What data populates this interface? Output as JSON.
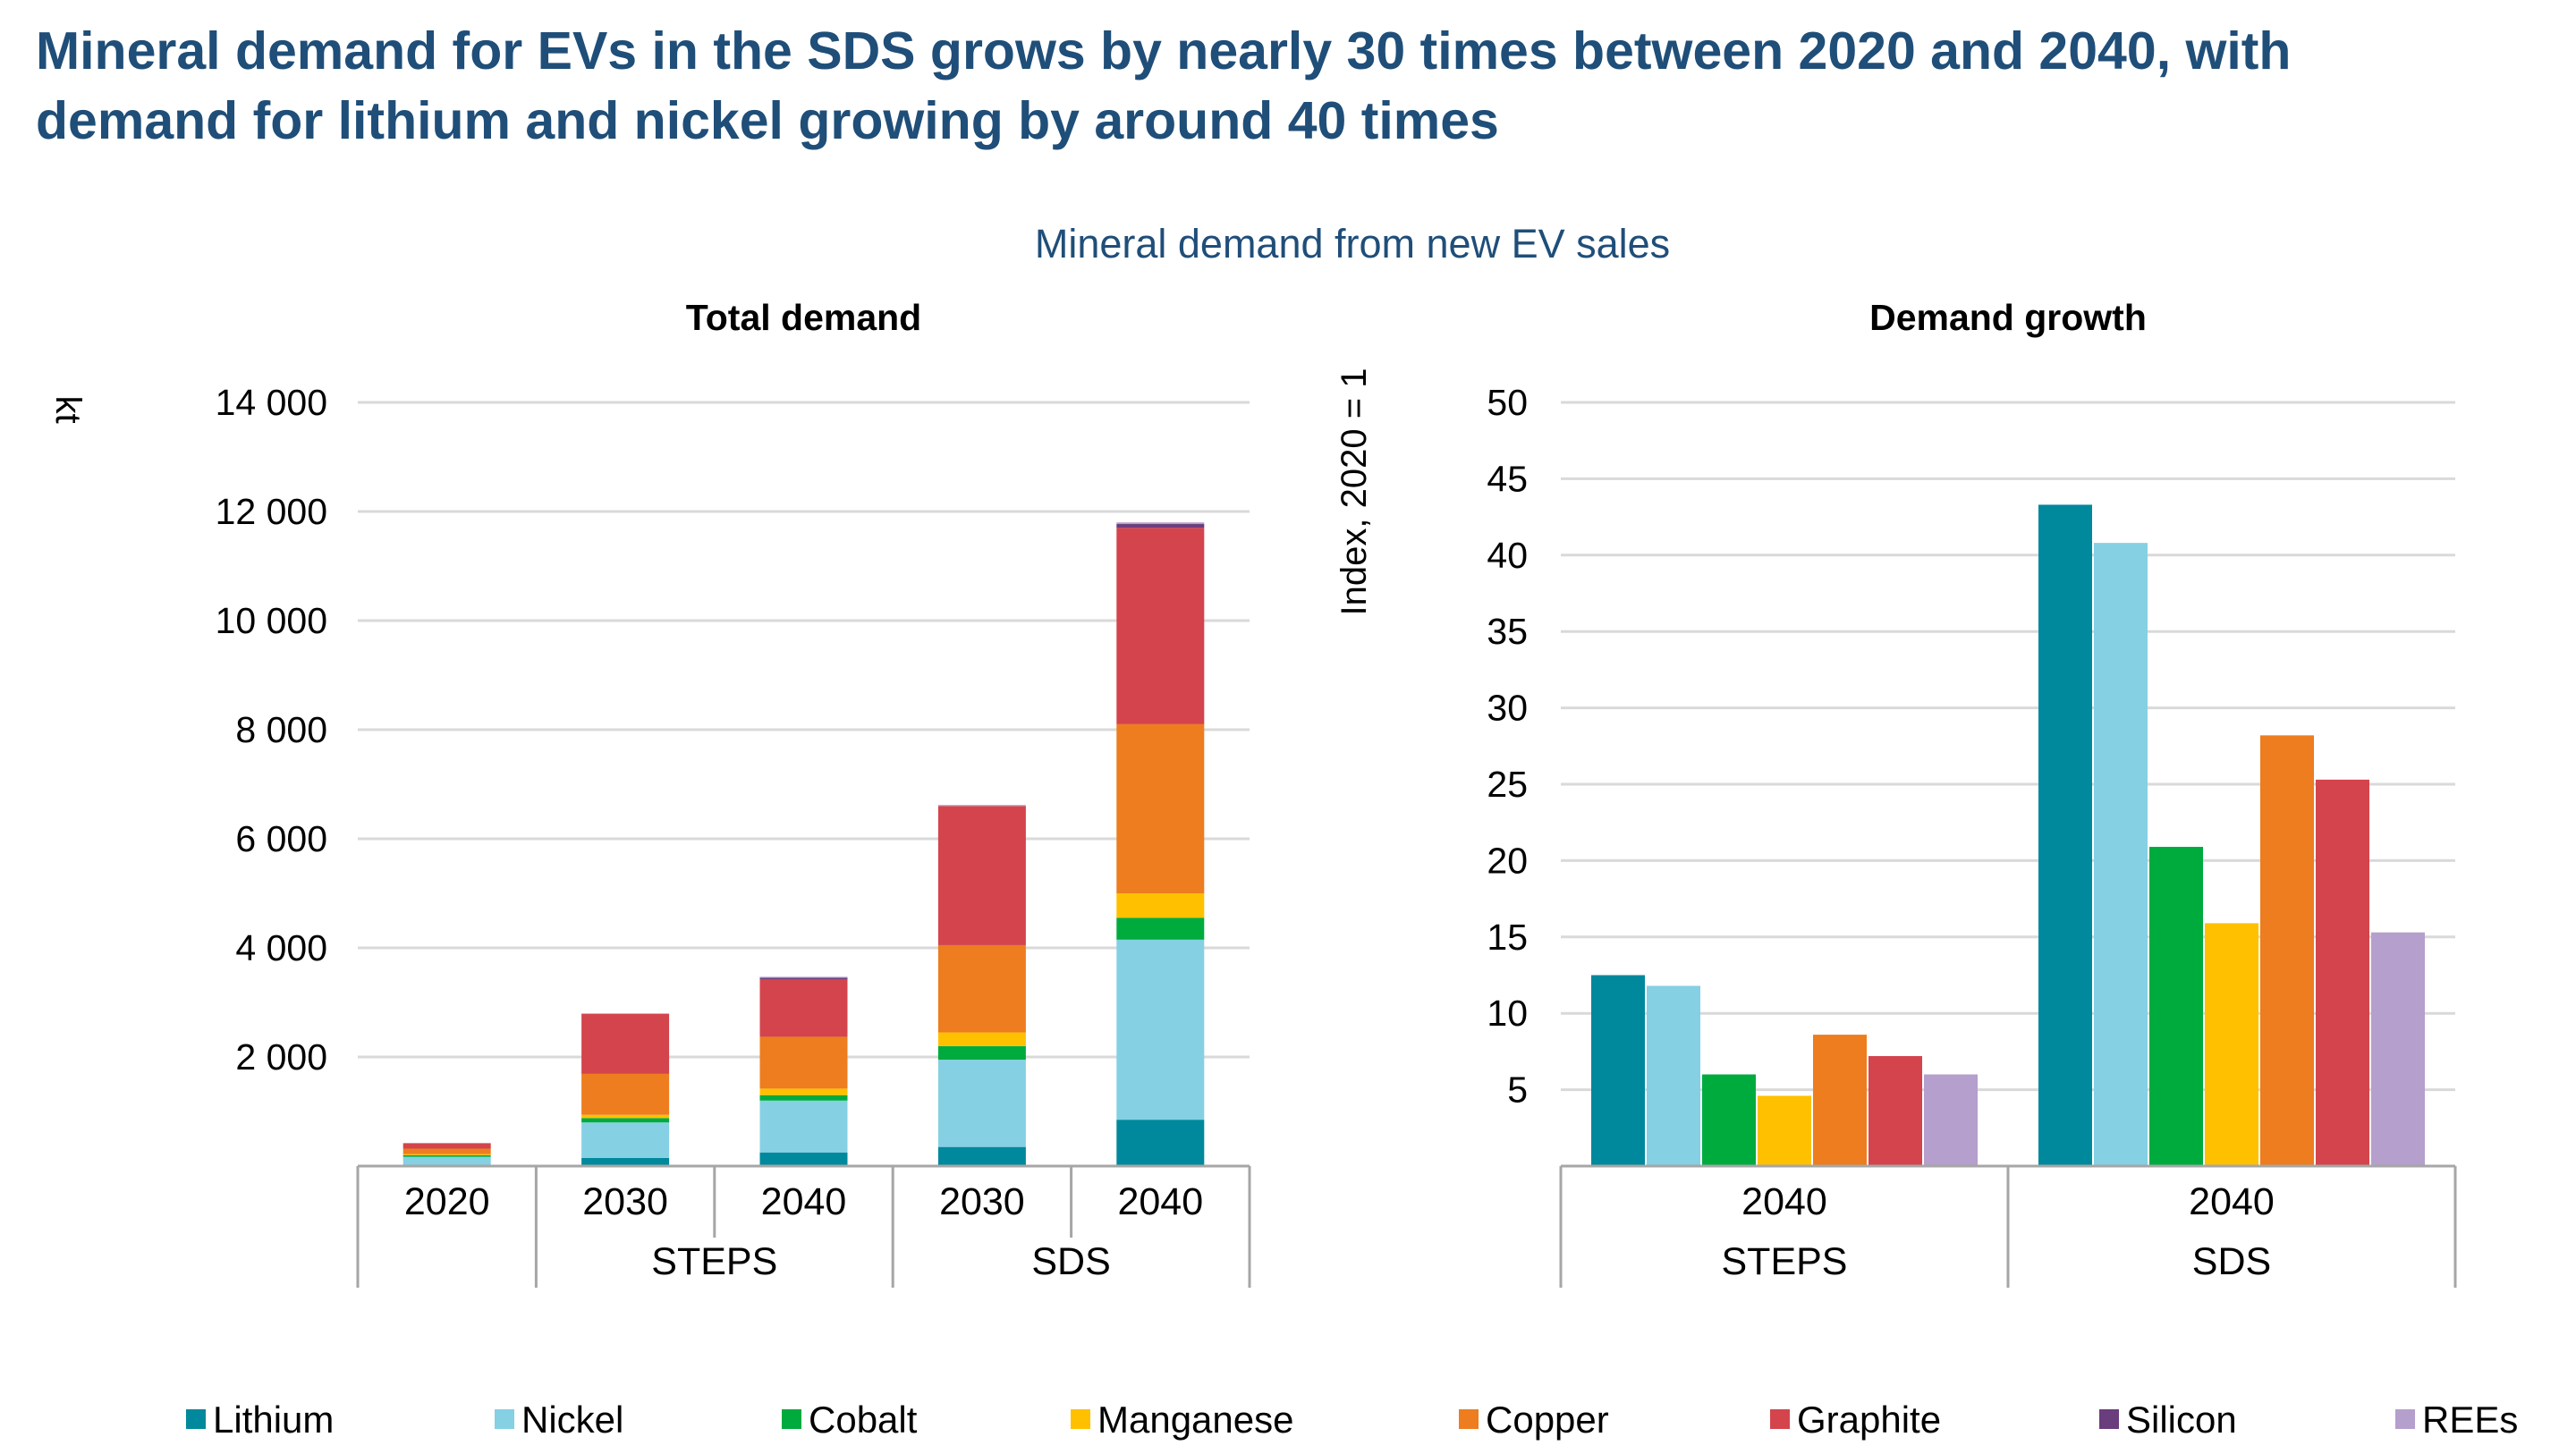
{
  "headline": {
    "line1": "Mineral demand for EVs in the SDS grows by nearly 30 times between 2020 and 2040, with",
    "line2": "demand for lithium and nickel growing by around 40 times"
  },
  "subtitle": "Mineral demand from new EV sales",
  "colors": {
    "Lithium": "#00889c",
    "Nickel": "#85d0e3",
    "Cobalt": "#00ab3e",
    "Manganese": "#ffc000",
    "Copper": "#ed7d1f",
    "Graphite": "#d4444c",
    "Silicon": "#6a3d7c",
    "REEs": "#b59fcc"
  },
  "chart_data": [
    {
      "type": "bar",
      "stacked": true,
      "title": "Total demand",
      "ylabel": "kt",
      "ylim": [
        0,
        14000
      ],
      "yticks": [
        2000,
        4000,
        6000,
        8000,
        10000,
        12000,
        14000
      ],
      "ytick_labels": [
        "2 000",
        "4 000",
        "6 000",
        "8 000",
        "10 000",
        "12 000",
        "14 000"
      ],
      "categories": [
        "2020",
        "2030",
        "2040",
        "2030",
        "2040"
      ],
      "groups": [
        {
          "label": "",
          "span": 1
        },
        {
          "label": "STEPS",
          "span": 2
        },
        {
          "label": "SDS",
          "span": 2
        }
      ],
      "series": [
        {
          "name": "Lithium",
          "values": [
            20,
            150,
            250,
            350,
            850
          ]
        },
        {
          "name": "Nickel",
          "values": [
            150,
            650,
            950,
            1600,
            3300
          ]
        },
        {
          "name": "Cobalt",
          "values": [
            30,
            80,
            100,
            250,
            400
          ]
        },
        {
          "name": "Manganese",
          "values": [
            20,
            60,
            120,
            250,
            450
          ]
        },
        {
          "name": "Copper",
          "values": [
            100,
            750,
            950,
            1600,
            3100
          ]
        },
        {
          "name": "Graphite",
          "values": [
            100,
            1100,
            1050,
            2550,
            3600
          ]
        },
        {
          "name": "Silicon",
          "values": [
            0,
            0,
            30,
            0,
            70
          ]
        },
        {
          "name": "REEs",
          "values": [
            0,
            10,
            20,
            20,
            30
          ]
        }
      ]
    },
    {
      "type": "bar",
      "stacked": false,
      "title": "Demand growth",
      "ylabel": "Index, 2020 = 1",
      "ylim": [
        0,
        50
      ],
      "yticks": [
        5,
        10,
        15,
        20,
        25,
        30,
        35,
        40,
        45,
        50
      ],
      "categories": [
        "2040",
        "2040"
      ],
      "groups": [
        {
          "label": "STEPS",
          "span": 1
        },
        {
          "label": "SDS",
          "span": 1
        }
      ],
      "series": [
        {
          "name": "Lithium",
          "values": [
            12.5,
            43.3
          ]
        },
        {
          "name": "Nickel",
          "values": [
            11.8,
            40.8
          ]
        },
        {
          "name": "Cobalt",
          "values": [
            6.0,
            20.9
          ]
        },
        {
          "name": "Manganese",
          "values": [
            4.6,
            15.9
          ]
        },
        {
          "name": "Copper",
          "values": [
            8.6,
            28.2
          ]
        },
        {
          "name": "Graphite",
          "values": [
            7.2,
            25.3
          ]
        },
        {
          "name": "REEs",
          "values": [
            6.0,
            15.3
          ]
        }
      ]
    }
  ],
  "legend": [
    "Lithium",
    "Nickel",
    "Cobalt",
    "Manganese",
    "Copper",
    "Graphite",
    "Silicon",
    "REEs"
  ]
}
